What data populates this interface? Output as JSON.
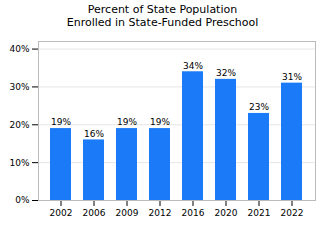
{
  "chart_data": {
    "type": "bar",
    "title": "Percent of State Population\nEnrolled in State-Funded Preschool",
    "categories": [
      "2002",
      "2006",
      "2009",
      "2012",
      "2016",
      "2020",
      "2021",
      "2022"
    ],
    "values": [
      19,
      16,
      19,
      19,
      34,
      32,
      23,
      31
    ],
    "value_labels": [
      "19%",
      "16%",
      "19%",
      "19%",
      "34%",
      "32%",
      "23%",
      "31%"
    ],
    "color": "#1a7af8",
    "ylim": [
      0,
      42
    ],
    "yticks": [
      {
        "value": 0,
        "label": "0%"
      },
      {
        "value": 10,
        "label": "10%"
      },
      {
        "value": 20,
        "label": "20%"
      },
      {
        "value": 30,
        "label": "30%"
      },
      {
        "value": 40,
        "label": "40%"
      }
    ],
    "grid": true,
    "data_labels": true
  }
}
